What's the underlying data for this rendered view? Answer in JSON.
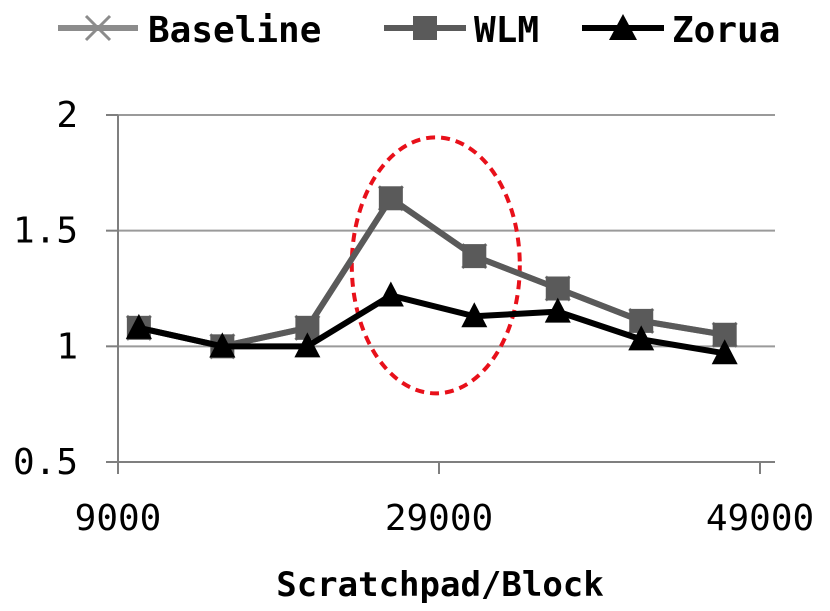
{
  "chart_data": {
    "type": "line",
    "xlabel": "Scratchpad/Block",
    "ylabel": "",
    "xlim": [
      9000,
      49000
    ],
    "ylim": [
      0.5,
      2
    ],
    "xticks": [
      "9000",
      "29000",
      "49000"
    ],
    "yticks": [
      "0.5",
      "1",
      "1.5",
      "2"
    ],
    "grid": "horizontal",
    "legend_position": "top",
    "highlight": {
      "shape": "dashed ellipse",
      "color": "#e8101a",
      "center": [
        28800,
        1.35
      ]
    },
    "series": [
      {
        "name": "Baseline",
        "color": "#8c8c8c",
        "marker": "x",
        "x": [
          10300,
          15500,
          20800,
          26000,
          31200,
          36400,
          41600,
          46800
        ],
        "y": [
          1.08,
          1.0,
          1.08,
          1.64,
          1.39,
          1.25,
          1.11,
          1.05
        ]
      },
      {
        "name": "WLM",
        "color": "#5a5a5a",
        "marker": "square",
        "x": [
          10300,
          15500,
          20800,
          26000,
          31200,
          36400,
          41600,
          46800
        ],
        "y": [
          1.08,
          1.0,
          1.08,
          1.64,
          1.39,
          1.25,
          1.11,
          1.05
        ]
      },
      {
        "name": "Zorua",
        "color": "#000000",
        "marker": "triangle",
        "x": [
          10300,
          15500,
          20800,
          26000,
          31200,
          36400,
          41600,
          46800
        ],
        "y": [
          1.08,
          1.0,
          1.0,
          1.22,
          1.13,
          1.15,
          1.03,
          0.97
        ]
      }
    ]
  }
}
